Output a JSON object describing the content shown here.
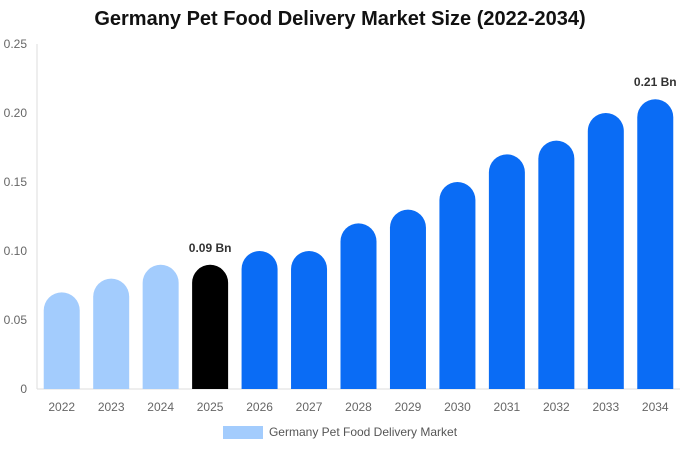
{
  "chart_data": {
    "type": "bar",
    "title": "Germany Pet Food Delivery Market Size (2022-2034)",
    "categories": [
      "2022",
      "2023",
      "2024",
      "2025",
      "2026",
      "2027",
      "2028",
      "2029",
      "2030",
      "2031",
      "2032",
      "2033",
      "2034"
    ],
    "series": [
      {
        "name": "Germany Pet Food Delivery Market",
        "values": [
          0.07,
          0.08,
          0.09,
          0.09,
          0.1,
          0.1,
          0.12,
          0.13,
          0.15,
          0.17,
          0.18,
          0.2,
          0.21
        ]
      }
    ],
    "bar_colors": [
      "#a3ccfd",
      "#a3ccfd",
      "#a3ccfd",
      "#000000",
      "#0a6cf5",
      "#0a6cf5",
      "#0a6cf5",
      "#0a6cf5",
      "#0a6cf5",
      "#0a6cf5",
      "#0a6cf5",
      "#0a6cf5",
      "#0a6cf5"
    ],
    "data_labels": [
      {
        "category": "2025",
        "text": "0.09 Bn"
      },
      {
        "category": "2034",
        "text": "0.21 Bn"
      }
    ],
    "ylim": [
      0,
      0.25
    ],
    "yticks": [
      "0",
      "0.05",
      "0.10",
      "0.15",
      "0.20",
      "0.25"
    ],
    "xlabel": "",
    "ylabel": "",
    "grid": false,
    "legend_position": "bottom",
    "legend_color": "#a3ccfd"
  }
}
